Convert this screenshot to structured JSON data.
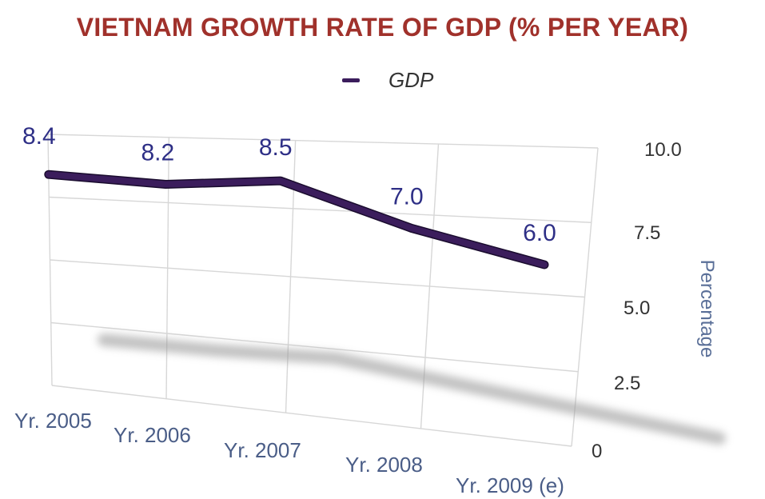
{
  "chart_data": {
    "type": "line",
    "title": "VIETNAM GROWTH RATE OF GDP (% PER YEAR)",
    "categories": [
      "Yr. 2005",
      "Yr. 2006",
      "Yr. 2007",
      "Yr. 2008",
      "Yr. 2009 (e)"
    ],
    "series": [
      {
        "name": "GDP",
        "values": [
          8.4,
          8.2,
          8.5,
          7.0,
          6.0
        ],
        "color": "#3b1d5c"
      }
    ],
    "data_labels": [
      "8.4",
      "8.2",
      "8.5",
      "7.0",
      "6.0"
    ],
    "y_ticks": [
      "0",
      "2.5",
      "5.0",
      "7.5",
      "10.0"
    ],
    "ylabel": "Percentage",
    "xlabel": "",
    "ylim": [
      0,
      10
    ],
    "grid": true,
    "legend_position": "top-center",
    "label_color": "#2e2f86",
    "axis_text_color": "#333333",
    "category_text_color": "#4a5d87"
  }
}
